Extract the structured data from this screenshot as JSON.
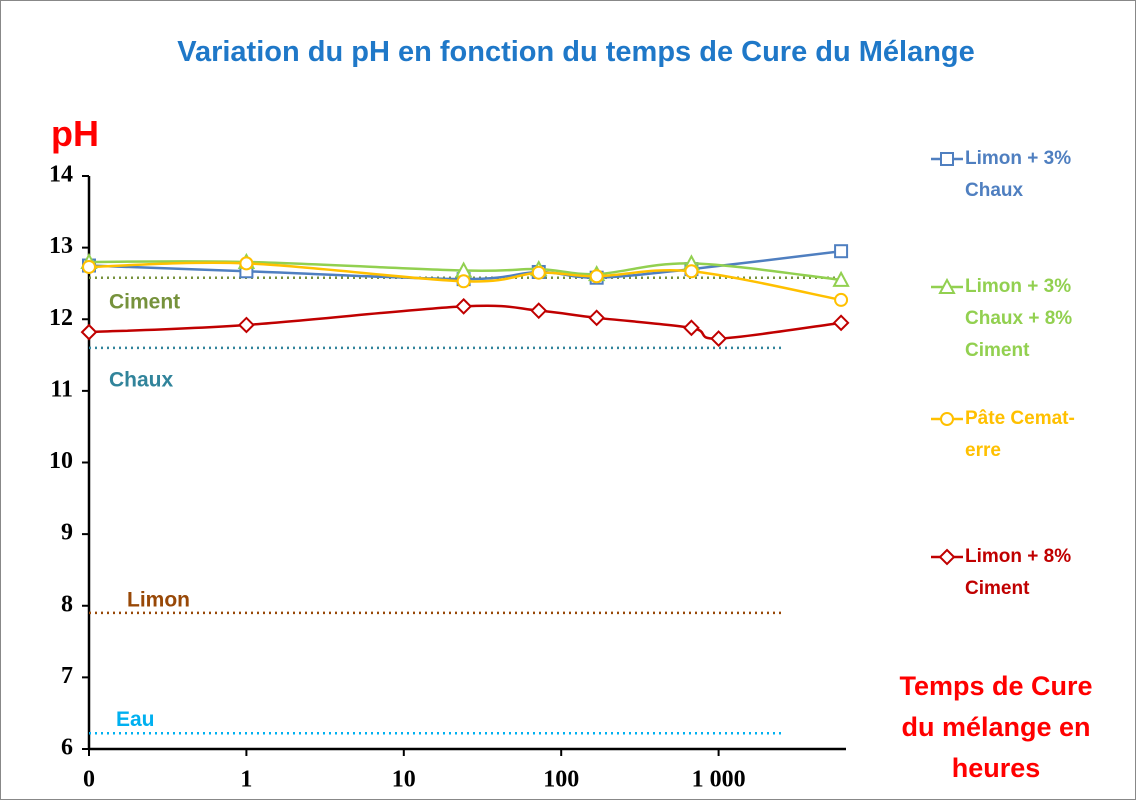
{
  "chart_data": {
    "type": "line",
    "title": "Variation du pH en fonction du temps de Cure du Mélange",
    "y_label": "pH",
    "x_label": "Temps de Cure du mélange en heures",
    "x_scale": "log",
    "xlim": [
      0.1,
      10000
    ],
    "xticks": [
      {
        "value": 0.1,
        "label": "0"
      },
      1,
      10,
      100,
      {
        "value": 1000,
        "label": "1 000"
      }
    ],
    "ylim": [
      6,
      14
    ],
    "yticks": [
      6,
      7,
      8,
      9,
      10,
      11,
      12,
      13,
      14
    ],
    "series": [
      {
        "name": "Limon + 3% Chaux",
        "color": "#4f7fc0",
        "marker": "square",
        "x": [
          0.1,
          1,
          24,
          72,
          168,
          672,
          6000
        ],
        "values": [
          12.75,
          12.67,
          12.56,
          12.66,
          12.58,
          12.7,
          12.95
        ]
      },
      {
        "name": "Limon + 3% Chaux + 8% Ciment",
        "color": "#92d050",
        "marker": "triangle",
        "x": [
          0.1,
          1,
          24,
          72,
          168,
          672,
          6000
        ],
        "values": [
          12.8,
          12.8,
          12.68,
          12.7,
          12.63,
          12.78,
          12.55
        ]
      },
      {
        "name": "Pâte Cemat­erre",
        "color": "#ffc000",
        "marker": "circle",
        "x": [
          0.1,
          1,
          24,
          72,
          168,
          672,
          6000
        ],
        "values": [
          12.73,
          12.78,
          12.53,
          12.65,
          12.6,
          12.67,
          12.27
        ]
      },
      {
        "name": "Limon + 8% Ciment",
        "color": "#c00000",
        "marker": "diamond",
        "x": [
          0.1,
          1,
          24,
          72,
          168,
          672,
          1000,
          6000
        ],
        "values": [
          11.82,
          11.92,
          12.18,
          12.12,
          12.02,
          11.88,
          11.73,
          11.95
        ]
      }
    ],
    "reference_lines": [
      {
        "name": "Ciment",
        "value": 12.58,
        "color": "#76923c",
        "x": [
          0.1,
          6000
        ]
      },
      {
        "name": "Chaux",
        "value": 11.6,
        "color": "#31849b",
        "x": [
          0.1,
          2500
        ]
      },
      {
        "name": "Limon",
        "value": 7.9,
        "color": "#984807",
        "x": [
          0.1,
          2500
        ]
      },
      {
        "name": "Eau",
        "value": 6.22,
        "color": "#00b0f0",
        "x": [
          0.1,
          2500
        ]
      }
    ]
  }
}
